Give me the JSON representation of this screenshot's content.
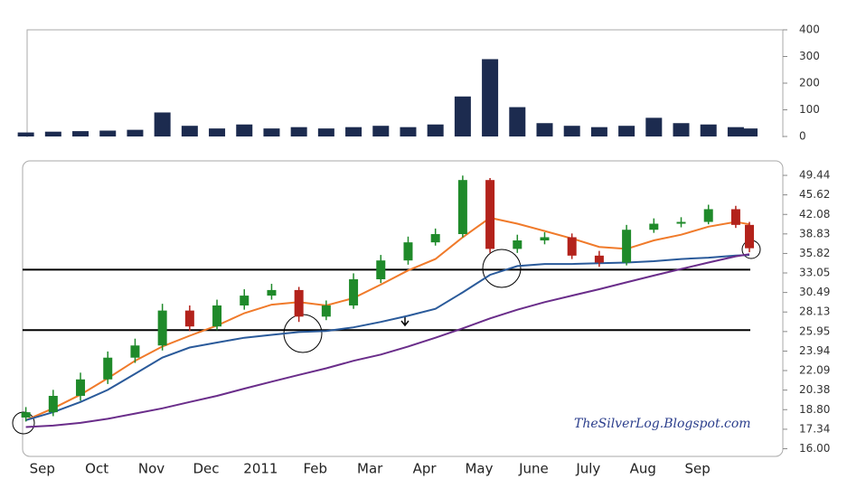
{
  "chart_data": [
    {
      "type": "bar",
      "x": [
        -0.3,
        0.2,
        0.7,
        1.2,
        1.7,
        2.2,
        2.7,
        3.2,
        3.7,
        4.2,
        4.7,
        5.2,
        5.7,
        6.2,
        6.7,
        7.2,
        7.7,
        8.2,
        8.7,
        9.2,
        9.7,
        10.2,
        10.7,
        11.2,
        11.7,
        12.2,
        12.7,
        12.95
      ],
      "values": [
        15,
        18,
        20,
        22,
        25,
        90,
        40,
        30,
        45,
        30,
        35,
        30,
        35,
        40,
        35,
        45,
        150,
        290,
        110,
        50,
        40,
        35,
        40,
        70,
        50,
        45,
        35,
        30
      ],
      "color": "#1c2b4f",
      "xlim": [
        -0.36,
        13.38
      ],
      "ylim": [
        0,
        400
      ],
      "yticks": [
        0,
        100,
        200,
        300,
        400
      ]
    },
    {
      "type": "candlestick",
      "x": [
        -0.3,
        0.2,
        0.7,
        1.2,
        1.7,
        2.2,
        2.7,
        3.2,
        3.7,
        4.2,
        4.7,
        5.2,
        5.7,
        6.2,
        6.7,
        7.2,
        7.7,
        8.2,
        8.7,
        9.2,
        9.7,
        10.2,
        10.7,
        11.2,
        11.7,
        12.2,
        12.7,
        12.95
      ],
      "open": [
        18.2,
        18.6,
        19.9,
        21.3,
        23.3,
        24.5,
        28.3,
        26.5,
        28.9,
        30.1,
        30.8,
        27.6,
        28.9,
        32.2,
        34.8,
        37.5,
        38.8,
        48.5,
        36.5,
        37.8,
        38.3,
        35.5,
        34.5,
        39.5,
        40.5,
        40.8,
        43.0,
        40.3
      ],
      "high": [
        19.0,
        20.4,
        21.9,
        23.9,
        25.2,
        29.1,
        28.9,
        29.6,
        30.9,
        31.6,
        31.2,
        29.5,
        33.0,
        35.6,
        38.4,
        39.7,
        49.4,
        48.9,
        38.7,
        39.1,
        38.9,
        36.2,
        40.3,
        41.4,
        41.6,
        43.8,
        43.6,
        40.8
      ],
      "low": [
        17.9,
        18.3,
        19.5,
        20.9,
        22.8,
        24.0,
        26.0,
        26.1,
        28.4,
        29.6,
        27.0,
        27.2,
        28.5,
        31.7,
        34.2,
        37.0,
        38.3,
        35.9,
        35.9,
        37.2,
        35.0,
        33.9,
        34.1,
        39.0,
        39.9,
        40.4,
        39.8,
        36.0
      ],
      "close": [
        18.6,
        19.9,
        21.3,
        23.3,
        24.5,
        28.3,
        26.5,
        28.9,
        30.1,
        30.8,
        27.6,
        28.9,
        32.2,
        34.8,
        37.5,
        38.8,
        48.5,
        36.5,
        37.8,
        38.3,
        35.5,
        34.5,
        39.5,
        40.5,
        40.8,
        43.0,
        40.3,
        36.6
      ],
      "up_color": "#1f8a2a",
      "down_color": "#b3221b",
      "series": [
        {
          "color": "#f07a2a",
          "values": [
            18.0,
            18.9,
            20.0,
            21.4,
            23.0,
            24.4,
            25.5,
            26.6,
            28.0,
            29.0,
            29.3,
            28.9,
            29.8,
            31.5,
            33.4,
            35.0,
            38.3,
            41.5,
            40.5,
            39.3,
            38.1,
            36.8,
            36.5,
            37.8,
            38.7,
            40.0,
            40.8,
            40.4
          ]
        },
        {
          "color": "#2a5a9a",
          "values": [
            18.0,
            18.6,
            19.4,
            20.4,
            21.8,
            23.3,
            24.3,
            24.8,
            25.3,
            25.6,
            25.9,
            26.0,
            26.4,
            27.0,
            27.7,
            28.5,
            30.5,
            32.8,
            34.0,
            34.3,
            34.3,
            34.4,
            34.5,
            34.7,
            35.0,
            35.2,
            35.5,
            35.6
          ]
        },
        {
          "color": "#6a2d8a",
          "values": [
            17.5,
            17.6,
            17.8,
            18.1,
            18.5,
            18.9,
            19.4,
            19.9,
            20.5,
            21.1,
            21.7,
            22.3,
            23.0,
            23.6,
            24.4,
            25.3,
            26.3,
            27.4,
            28.4,
            29.3,
            30.1,
            30.9,
            31.8,
            32.7,
            33.6,
            34.5,
            35.4,
            35.7
          ]
        }
      ],
      "hlines": [
        33.5,
        26.1
      ],
      "log_scale": true,
      "xlim": [
        -0.36,
        13.38
      ],
      "xticks": [
        {
          "value": 0,
          "label": "Sep"
        },
        {
          "value": 1,
          "label": "Oct"
        },
        {
          "value": 2,
          "label": "Nov"
        },
        {
          "value": 3,
          "label": "Dec"
        },
        {
          "value": 4,
          "label": "2011"
        },
        {
          "value": 5,
          "label": "Feb"
        },
        {
          "value": 6,
          "label": "Mar"
        },
        {
          "value": 7,
          "label": "Apr"
        },
        {
          "value": 8,
          "label": "May"
        },
        {
          "value": 9,
          "label": "June"
        },
        {
          "value": 10,
          "label": "July"
        },
        {
          "value": 11,
          "label": "Aug"
        },
        {
          "value": 12,
          "label": "Sep"
        }
      ],
      "ylim": [
        15.5,
        52.1
      ],
      "yticks": [
        49.44,
        45.62,
        42.08,
        38.83,
        35.82,
        33.05,
        30.49,
        28.13,
        25.95,
        23.94,
        22.09,
        20.38,
        {
          "value": 18.8,
          "label": "18.80"
        },
        17.34,
        {
          "value": 16,
          "label": "16.00"
        }
      ],
      "annotation": "TheSilverLog.Blogspot.com"
    }
  ]
}
